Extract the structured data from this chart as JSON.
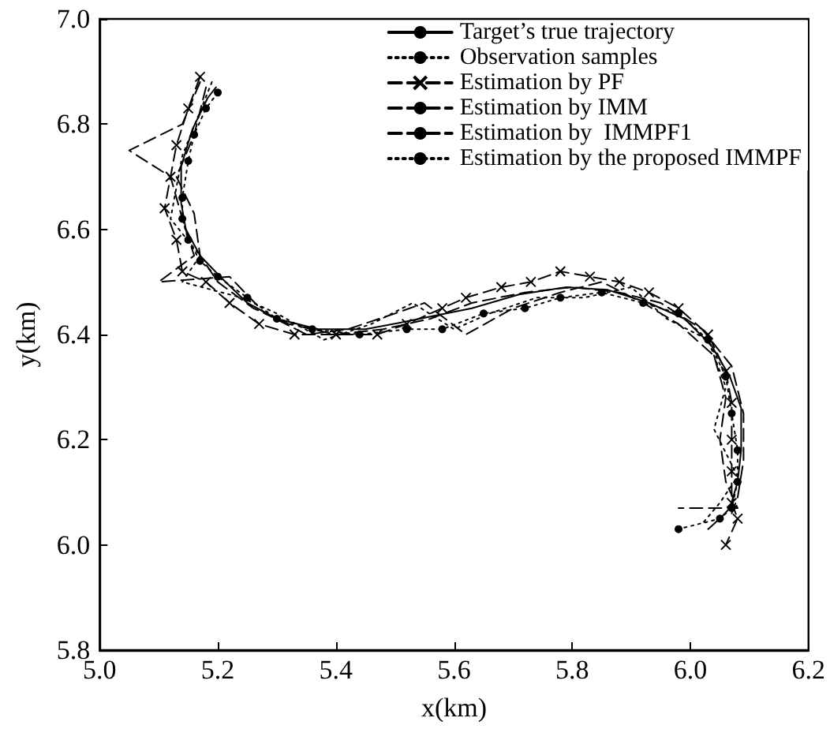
{
  "chart_data": {
    "type": "line",
    "xlabel": "x(km)",
    "ylabel": "y(km)",
    "xlim": [
      5.0,
      6.2
    ],
    "xticks": [
      {
        "value": 5.0,
        "label": "5.0"
      },
      {
        "value": 5.2,
        "label": "5.2"
      },
      {
        "value": 5.4,
        "label": "5.4"
      },
      {
        "value": 5.6,
        "label": "5.6"
      },
      {
        "value": 5.8,
        "label": "5.8"
      },
      {
        "value": 6.0,
        "label": "6.0"
      },
      {
        "value": 6.2,
        "label": "6.2"
      }
    ],
    "ylim": [
      5.8,
      7.0
    ],
    "yticks": [
      {
        "value": 5.8,
        "label": "5.8"
      },
      {
        "value": 6.0,
        "label": "6.0"
      },
      {
        "value": 6.2,
        "label": "6.2"
      },
      {
        "value": 6.4,
        "label": "6.4"
      },
      {
        "value": 6.6,
        "label": "6.6"
      },
      {
        "value": 6.8,
        "label": "6.8"
      },
      {
        "value": 7.0,
        "label": "7.0"
      }
    ],
    "grid": false,
    "legend": "top right",
    "series": [
      {
        "name": "Target’s true trajectory",
        "color": "#000000",
        "line_style": "solid",
        "marker": "none",
        "x": [
          5.197,
          5.183,
          5.157,
          5.138,
          5.138,
          5.146,
          5.17,
          5.204,
          5.25,
          5.3,
          5.37,
          5.45,
          5.52,
          5.63,
          5.71,
          5.79,
          5.86,
          5.93,
          5.99,
          6.035,
          6.067,
          6.086,
          6.086,
          6.08,
          6.067,
          6.05,
          6.03
        ],
        "values": [
          6.87,
          6.85,
          6.79,
          6.72,
          6.65,
          6.6,
          6.55,
          6.51,
          6.46,
          6.43,
          6.41,
          6.41,
          6.425,
          6.45,
          6.476,
          6.49,
          6.485,
          6.46,
          6.43,
          6.38,
          6.32,
          6.26,
          6.18,
          6.12,
          6.07,
          6.05,
          6.03
        ]
      },
      {
        "name": "Observation samples",
        "color": "#000000",
        "line_style": "dotted",
        "marker": "none",
        "x": [
          5.19,
          5.14,
          5.12,
          5.17,
          5.14,
          5.24,
          5.3,
          5.38,
          5.46,
          5.53,
          5.6,
          5.66,
          5.74,
          5.82,
          5.9,
          5.96,
          6.03,
          6.06,
          6.04,
          6.08,
          6.05,
          6.02
        ],
        "values": [
          6.88,
          6.74,
          6.62,
          6.55,
          6.5,
          6.47,
          6.44,
          6.39,
          6.42,
          6.46,
          6.41,
          6.44,
          6.47,
          6.47,
          6.49,
          6.43,
          6.39,
          6.3,
          6.22,
          6.13,
          6.08,
          6.04
        ]
      },
      {
        "name": "Estimation by PF",
        "color": "#000000",
        "line_style": "dashed",
        "marker": "cross",
        "x": [
          5.17,
          5.15,
          5.13,
          5.12,
          5.11,
          5.13,
          5.14,
          5.18,
          5.22,
          5.27,
          5.33,
          5.4,
          5.47,
          5.52,
          5.58,
          5.62,
          5.68,
          5.73,
          5.78,
          5.83,
          5.88,
          5.93,
          5.98,
          6.03,
          6.06,
          6.07,
          6.07,
          6.07,
          6.07,
          6.08,
          6.06
        ],
        "values": [
          6.89,
          6.83,
          6.76,
          6.7,
          6.64,
          6.58,
          6.52,
          6.5,
          6.46,
          6.42,
          6.4,
          6.4,
          6.4,
          6.42,
          6.45,
          6.47,
          6.49,
          6.5,
          6.52,
          6.51,
          6.5,
          6.48,
          6.45,
          6.4,
          6.33,
          6.27,
          6.2,
          6.14,
          6.08,
          6.05,
          6.0
        ]
      },
      {
        "name": "Estimation by IMM",
        "color": "#000000",
        "line_style": "dashed",
        "marker": "none",
        "x": [
          5.17,
          5.14,
          5.05,
          5.12,
          5.14,
          5.16,
          5.1,
          5.22,
          5.28,
          5.35,
          5.42,
          5.5,
          5.55,
          5.62,
          5.7,
          5.78,
          5.85,
          5.92,
          5.98,
          6.04,
          6.06,
          6.05,
          6.06,
          6.08,
          5.98
        ],
        "values": [
          6.88,
          6.8,
          6.75,
          6.7,
          6.62,
          6.55,
          6.5,
          6.51,
          6.44,
          6.4,
          6.41,
          6.44,
          6.46,
          6.4,
          6.45,
          6.48,
          6.5,
          6.46,
          6.42,
          6.36,
          6.28,
          6.2,
          6.12,
          6.07,
          6.07
        ]
      },
      {
        "name": "Estimation by  IMMPF1",
        "color": "#000000",
        "line_style": "dashed",
        "marker": "none",
        "x": [
          5.18,
          5.16,
          5.13,
          5.16,
          5.17,
          5.2,
          5.26,
          5.32,
          5.4,
          5.48,
          5.56,
          5.63,
          5.72,
          5.8,
          5.88,
          5.95,
          6.02,
          6.07,
          6.09,
          6.09,
          6.08,
          6.07
        ],
        "values": [
          6.87,
          6.78,
          6.7,
          6.63,
          6.55,
          6.5,
          6.45,
          6.42,
          6.4,
          6.41,
          6.43,
          6.46,
          6.48,
          6.49,
          6.48,
          6.46,
          6.41,
          6.34,
          6.25,
          6.16,
          6.09,
          6.06
        ]
      },
      {
        "name": "Estimation by the proposed IMMPF",
        "color": "#000000",
        "line_style": "dotted",
        "marker": "circle",
        "x": [
          5.2,
          5.18,
          5.16,
          5.15,
          5.14,
          5.14,
          5.15,
          5.17,
          5.2,
          5.25,
          5.3,
          5.36,
          5.44,
          5.52,
          5.58,
          5.65,
          5.72,
          5.78,
          5.85,
          5.92,
          5.98,
          6.03,
          6.06,
          6.07,
          6.08,
          6.08,
          6.07,
          6.05,
          5.98
        ],
        "values": [
          6.86,
          6.83,
          6.78,
          6.73,
          6.66,
          6.62,
          6.58,
          6.54,
          6.51,
          6.47,
          6.43,
          6.41,
          6.4,
          6.41,
          6.41,
          6.44,
          6.45,
          6.47,
          6.48,
          6.46,
          6.44,
          6.39,
          6.32,
          6.25,
          6.18,
          6.12,
          6.07,
          6.05,
          6.03
        ]
      }
    ]
  }
}
